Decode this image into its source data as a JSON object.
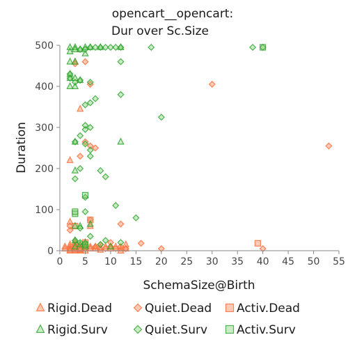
{
  "chart_data": {
    "type": "scatter",
    "title_lines": [
      "opencart__opencart:",
      "Dur over Sc.Size"
    ],
    "xlabel": "SchemaSize@Birth",
    "ylabel": "Duration",
    "xlim": [
      0,
      55
    ],
    "ylim": [
      0,
      500
    ],
    "x_ticks": [
      0,
      5,
      10,
      15,
      20,
      25,
      30,
      35,
      40,
      45,
      50,
      55
    ],
    "y_ticks": [
      0,
      100,
      200,
      300,
      400,
      500
    ],
    "grid": false,
    "legend_position": "bottom",
    "series": [
      {
        "name": "Rigid.Dead",
        "marker": "triangle",
        "color": "#ff7f50",
        "points": [
          [
            1,
            5
          ],
          [
            1,
            10
          ],
          [
            2,
            220
          ],
          [
            2,
            70
          ],
          [
            2,
            10
          ],
          [
            2,
            15
          ],
          [
            2,
            5
          ],
          [
            2,
            2
          ],
          [
            3,
            460
          ],
          [
            3,
            10
          ],
          [
            3,
            15
          ],
          [
            3,
            5
          ],
          [
            3,
            2
          ],
          [
            3,
            0
          ],
          [
            3,
            20
          ],
          [
            4,
            345
          ],
          [
            4,
            10
          ],
          [
            4,
            5
          ],
          [
            4,
            0
          ],
          [
            4,
            15
          ],
          [
            5,
            15
          ],
          [
            5,
            5
          ],
          [
            5,
            0
          ],
          [
            6,
            60
          ],
          [
            6,
            10
          ],
          [
            6,
            5
          ],
          [
            7,
            10
          ],
          [
            7,
            5
          ],
          [
            8,
            8
          ],
          [
            8,
            2
          ],
          [
            9,
            10
          ],
          [
            10,
            5
          ],
          [
            11,
            10
          ],
          [
            12,
            5
          ],
          [
            12,
            0
          ],
          [
            13,
            5
          ],
          [
            13,
            15
          ],
          [
            2,
            0
          ],
          [
            4,
            2
          ]
        ]
      },
      {
        "name": "Quiet.Dead",
        "marker": "diamond",
        "color": "#ff7f50",
        "points": [
          [
            2,
            50
          ],
          [
            2,
            60
          ],
          [
            3,
            455
          ],
          [
            3,
            5
          ],
          [
            4,
            230
          ],
          [
            5,
            265
          ],
          [
            5,
            460
          ],
          [
            6,
            255
          ],
          [
            6,
            75
          ],
          [
            6,
            405
          ],
          [
            7,
            250
          ],
          [
            7,
            10
          ],
          [
            8,
            15
          ],
          [
            9,
            5
          ],
          [
            10,
            10
          ],
          [
            10,
            20
          ],
          [
            11,
            5
          ],
          [
            12,
            65
          ],
          [
            12,
            10
          ],
          [
            13,
            5
          ],
          [
            16,
            18
          ],
          [
            20,
            5
          ],
          [
            30,
            405
          ],
          [
            40,
            5
          ],
          [
            53,
            255
          ]
        ]
      },
      {
        "name": "Activ.Dead",
        "marker": "square",
        "color": "#ff7f50",
        "points": [
          [
            3,
            60
          ],
          [
            4,
            5
          ],
          [
            5,
            20
          ],
          [
            6,
            75
          ],
          [
            39,
            18
          ]
        ]
      },
      {
        "name": "Rigid.Surv",
        "marker": "triangle",
        "color": "#4caf50",
        "points": [
          [
            2,
            495
          ],
          [
            2,
            485
          ],
          [
            2,
            460
          ],
          [
            2,
            430
          ],
          [
            2,
            420
          ],
          [
            2,
            400
          ],
          [
            3,
            495
          ],
          [
            3,
            490
          ],
          [
            3,
            460
          ],
          [
            3,
            420
          ],
          [
            3,
            400
          ],
          [
            3,
            265
          ],
          [
            3,
            195
          ],
          [
            3,
            60
          ],
          [
            3,
            25
          ],
          [
            3,
            10
          ],
          [
            4,
            490
          ],
          [
            4,
            415
          ],
          [
            4,
            60
          ],
          [
            4,
            15
          ],
          [
            5,
            495
          ],
          [
            5,
            480
          ],
          [
            5,
            20
          ],
          [
            5,
            10
          ],
          [
            6,
            495
          ],
          [
            6,
            65
          ],
          [
            8,
            495
          ],
          [
            10,
            10
          ],
          [
            12,
            495
          ],
          [
            12,
            265
          ]
        ]
      },
      {
        "name": "Quiet.Surv",
        "marker": "diamond",
        "color": "#4caf50",
        "points": [
          [
            2,
            430
          ],
          [
            2,
            420
          ],
          [
            3,
            410
          ],
          [
            3,
            265
          ],
          [
            3,
            175
          ],
          [
            3,
            25
          ],
          [
            4,
            490
          ],
          [
            4,
            415
          ],
          [
            4,
            280
          ],
          [
            4,
            200
          ],
          [
            4,
            55
          ],
          [
            4,
            20
          ],
          [
            5,
            490
          ],
          [
            5,
            355
          ],
          [
            5,
            305
          ],
          [
            5,
            295
          ],
          [
            5,
            260
          ],
          [
            5,
            130
          ],
          [
            5,
            95
          ],
          [
            6,
            495
          ],
          [
            6,
            410
          ],
          [
            6,
            360
          ],
          [
            6,
            300
          ],
          [
            6,
            245
          ],
          [
            6,
            230
          ],
          [
            6,
            35
          ],
          [
            7,
            495
          ],
          [
            7,
            370
          ],
          [
            8,
            495
          ],
          [
            8,
            195
          ],
          [
            8,
            15
          ],
          [
            9,
            495
          ],
          [
            9,
            180
          ],
          [
            9,
            25
          ],
          [
            10,
            495
          ],
          [
            11,
            495
          ],
          [
            11,
            110
          ],
          [
            12,
            495
          ],
          [
            12,
            460
          ],
          [
            12,
            380
          ],
          [
            12,
            20
          ],
          [
            15,
            80
          ],
          [
            18,
            495
          ],
          [
            20,
            325
          ],
          [
            38,
            495
          ],
          [
            40,
            495
          ]
        ]
      },
      {
        "name": "Activ.Surv",
        "marker": "square",
        "color": "#4caf50",
        "points": [
          [
            3,
            90
          ],
          [
            3,
            95
          ],
          [
            5,
            135
          ],
          [
            5,
            15
          ],
          [
            40,
            495
          ]
        ]
      }
    ]
  }
}
